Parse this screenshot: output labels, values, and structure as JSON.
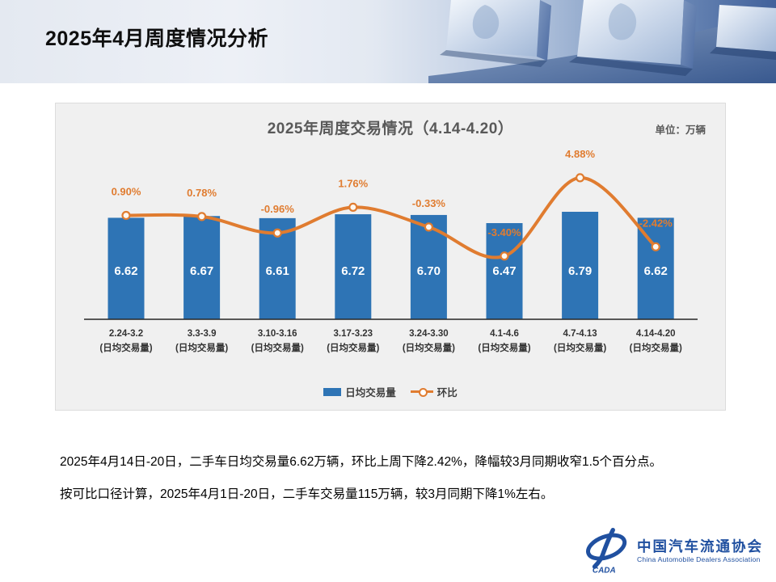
{
  "slide_title": "2025年4月周度情况分析",
  "chart_data": {
    "type": "bar",
    "combo": "bar+line",
    "title": "2025年周度交易情况（4.14-4.20）",
    "unit_label": "单位：万辆",
    "categories": [
      "2.24-3.2",
      "3.3-3.9",
      "3.10-3.16",
      "3.17-3.23",
      "3.24-3.30",
      "4.1-4.6",
      "4.7-4.13",
      "4.14-4.20"
    ],
    "category_sublabel": "(日均交易量)",
    "series": [
      {
        "name": "日均交易量",
        "type": "bar",
        "values": [
          6.62,
          6.67,
          6.61,
          6.72,
          6.7,
          6.47,
          6.79,
          6.62
        ],
        "color": "#2E74B5"
      },
      {
        "name": "环比",
        "type": "line",
        "values": [
          0.9,
          0.78,
          -0.96,
          1.76,
          -0.33,
          -3.4,
          4.88,
          -2.42
        ],
        "labels": [
          "0.90%",
          "0.78%",
          "-0.96%",
          "1.76%",
          "-0.33%",
          "-3.40%",
          "4.88%",
          "-2.42%"
        ],
        "color": "#E07C30"
      }
    ],
    "legend_position": "bottom",
    "grid": false,
    "value_axis_visible": false
  },
  "body": {
    "line1": "2025年4月14日-20日，二手车日均交易量6.62万辆，环比上周下降2.42%，降幅较3月同期收窄1.5个百分点。",
    "line2": "按可比口径计算，2025年4月1日-20日，二手车交易量115万辆，较3月同期下降1%左右。"
  },
  "logo": {
    "abbr": "CADA",
    "name_cn": "中国汽车流通协会",
    "name_en": "China Automobile Dealers Association"
  },
  "colors": {
    "bar": "#2E74B5",
    "line": "#E07C30",
    "chart_bg": "#F0F0F0",
    "axis": "#262626",
    "bar_label": "#FFFFFF",
    "category_label": "#333333",
    "logo_blue": "#2050A0"
  }
}
